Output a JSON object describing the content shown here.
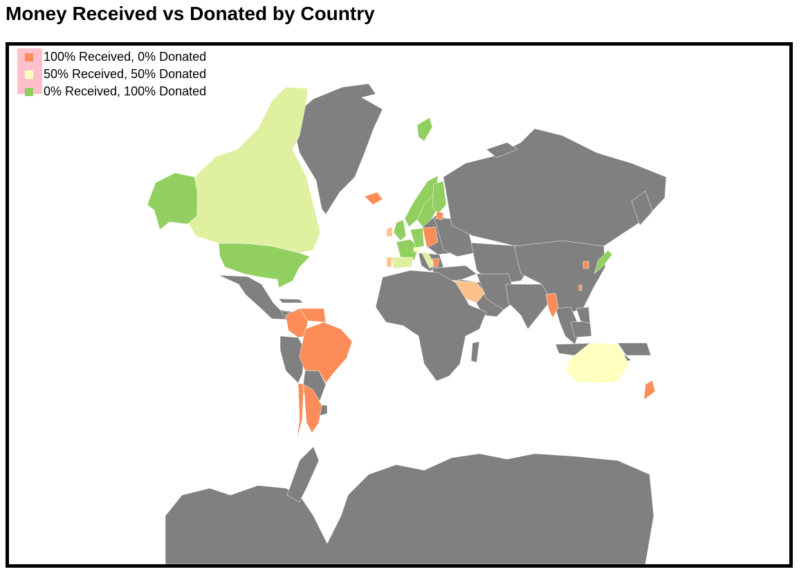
{
  "title": "Money Received vs Donated by Country",
  "legend": [
    {
      "label": "100% Received, 0% Donated",
      "color": "#fc8d59"
    },
    {
      "label": "50% Received, 50% Donated",
      "color": "#ffffbf"
    },
    {
      "label": "0% Received, 100% Donated",
      "color": "#91cf60"
    }
  ],
  "colors": {
    "no_data": "#808080",
    "received_100": "#fc8d59",
    "received_75": "#fdc28c",
    "received_50": "#ffffbf",
    "received_25": "#dff0a0",
    "received_0": "#91cf60",
    "frame_border": "#000000",
    "legend_background": "#ffc0cb"
  },
  "countries": [
    {
      "name": "Canada",
      "share_received": 0.25
    },
    {
      "name": "United States",
      "share_received": 0.0
    },
    {
      "name": "Brazil",
      "share_received": 1.0
    },
    {
      "name": "Venezuela",
      "share_received": 1.0
    },
    {
      "name": "Colombia",
      "share_received": 1.0
    },
    {
      "name": "Chile",
      "share_received": 1.0
    },
    {
      "name": "Argentina",
      "share_received": 1.0
    },
    {
      "name": "Iceland",
      "share_received": 1.0
    },
    {
      "name": "Norway",
      "share_received": 0.0
    },
    {
      "name": "Sweden",
      "share_received": 0.0
    },
    {
      "name": "Finland",
      "share_received": 0.0
    },
    {
      "name": "Svalbard",
      "share_received": 0.0
    },
    {
      "name": "United Kingdom",
      "share_received": 0.0
    },
    {
      "name": "Ireland",
      "share_received": 0.75
    },
    {
      "name": "France",
      "share_received": 0.0
    },
    {
      "name": "Spain",
      "share_received": 0.25
    },
    {
      "name": "Portugal",
      "share_received": 0.75
    },
    {
      "name": "Germany",
      "share_received": 0.0
    },
    {
      "name": "Poland",
      "share_received": 1.0
    },
    {
      "name": "Switzerland",
      "share_received": 0.5
    },
    {
      "name": "Italy",
      "share_received": 0.25
    },
    {
      "name": "Greece",
      "share_received": 1.0
    },
    {
      "name": "Latvia",
      "share_received": 1.0
    },
    {
      "name": "Saudi Arabia",
      "share_received": 0.75
    },
    {
      "name": "Thailand",
      "share_received": 1.0
    },
    {
      "name": "South Korea",
      "share_received": 1.0
    },
    {
      "name": "Taiwan",
      "share_received": 1.0
    },
    {
      "name": "Japan",
      "share_received": 0.0
    },
    {
      "name": "Australia",
      "share_received": 0.5
    },
    {
      "name": "New Zealand",
      "share_received": 1.0
    }
  ]
}
